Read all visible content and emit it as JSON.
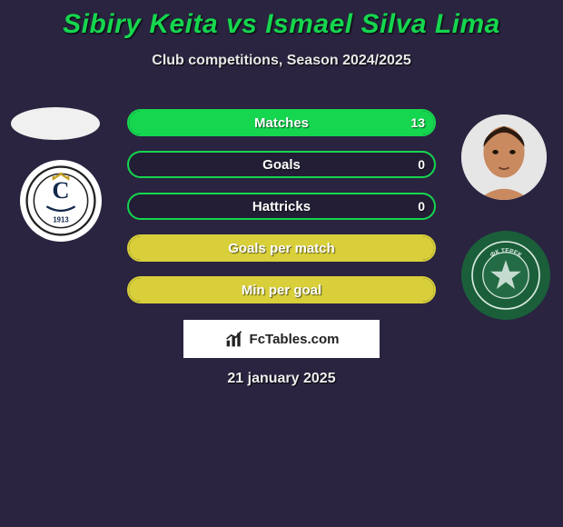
{
  "title": "Sibiry Keita vs Ismael Silva Lima",
  "subtitle": "Club competitions, Season 2024/2025",
  "colors": {
    "accent": "#15d64e",
    "bar_yellow": "#d8cf3a",
    "bar_yellow_fill": "#d8cf3a",
    "background": "#2a2440",
    "white": "#ffffff"
  },
  "players": {
    "left": {
      "name": "Sibiry Keita",
      "club_badge_text": "C",
      "club_badge_year": "1913"
    },
    "right": {
      "name": "Ismael Silva Lima",
      "club_color": "#1a5f3a",
      "club_badge_text": "ФК ТЕРЕК"
    }
  },
  "stats": [
    {
      "label": "Matches",
      "left_value": "",
      "right_value": "13",
      "border_color": "#15d64e",
      "left_fill_pct": 0,
      "right_fill_pct": 100,
      "left_fill_color": "transparent",
      "right_fill_color": "#15d64e"
    },
    {
      "label": "Goals",
      "left_value": "",
      "right_value": "0",
      "border_color": "#15d64e",
      "left_fill_pct": 0,
      "right_fill_pct": 0,
      "left_fill_color": "transparent",
      "right_fill_color": "transparent"
    },
    {
      "label": "Hattricks",
      "left_value": "",
      "right_value": "0",
      "border_color": "#15d64e",
      "left_fill_pct": 0,
      "right_fill_pct": 0,
      "left_fill_color": "transparent",
      "right_fill_color": "transparent"
    },
    {
      "label": "Goals per match",
      "left_value": "",
      "right_value": "",
      "border_color": "#d8cf3a",
      "left_fill_pct": 0,
      "right_fill_pct": 100,
      "left_fill_color": "transparent",
      "right_fill_color": "#d8cf3a"
    },
    {
      "label": "Min per goal",
      "left_value": "",
      "right_value": "",
      "border_color": "#d8cf3a",
      "left_fill_pct": 0,
      "right_fill_pct": 100,
      "left_fill_color": "transparent",
      "right_fill_color": "#d8cf3a"
    }
  ],
  "footer": {
    "brand": "FcTables.com",
    "date": "21 january 2025"
  }
}
